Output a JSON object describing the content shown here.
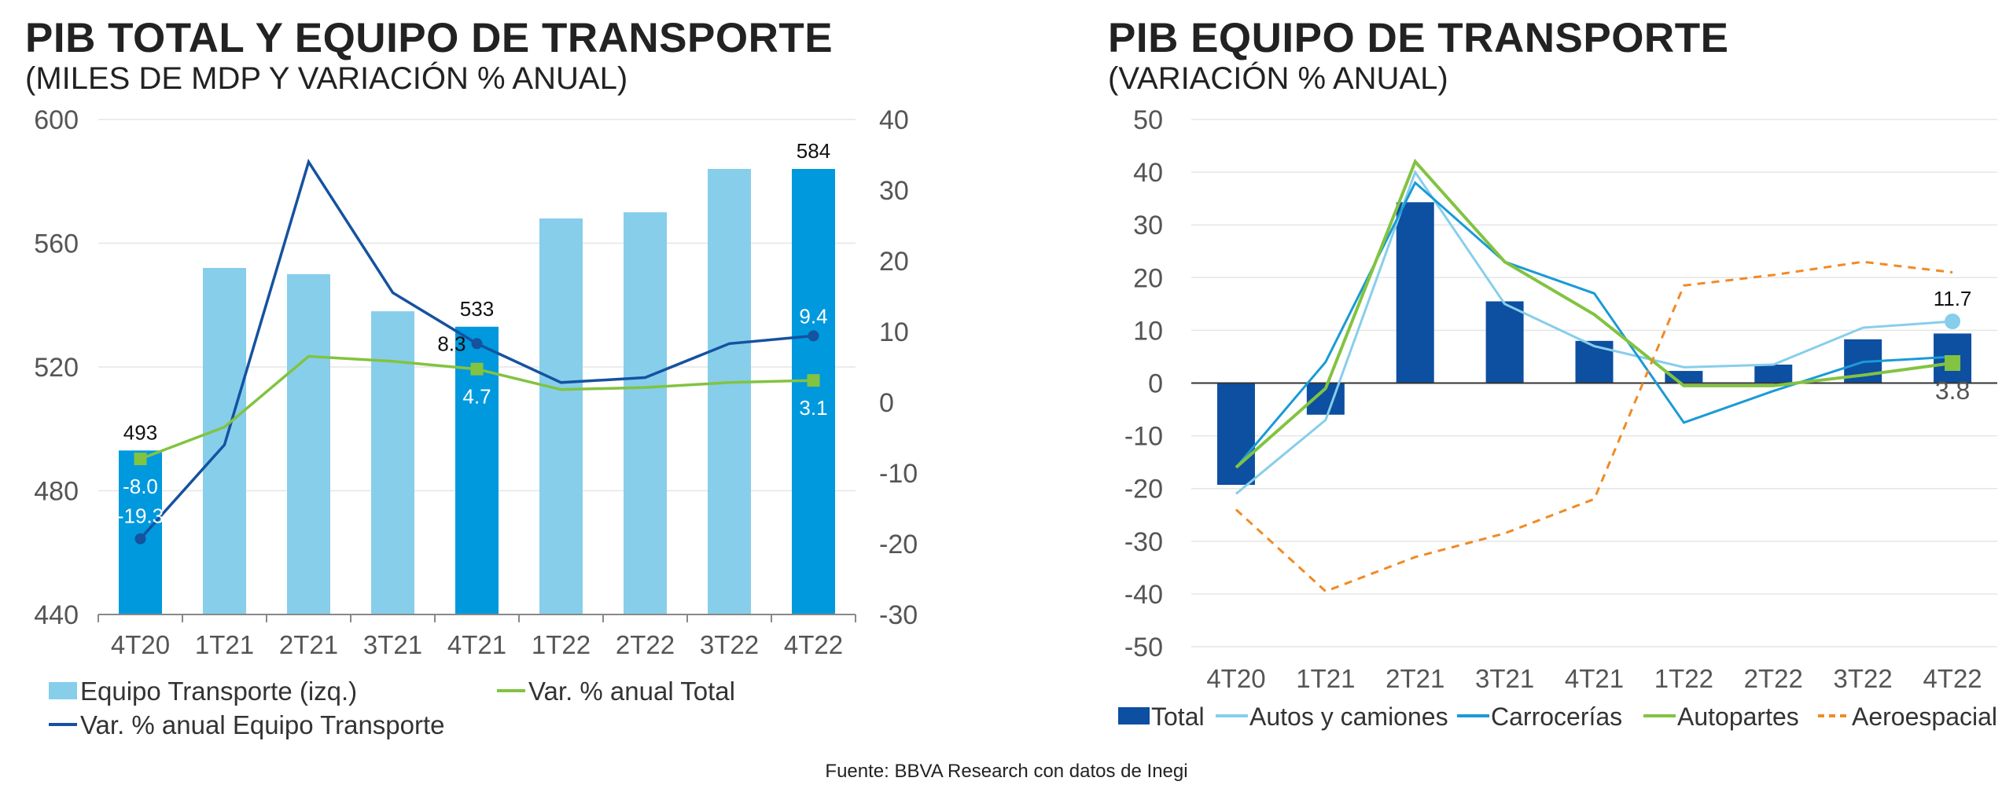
{
  "source": "Fuente: BBVA Research con datos de Inegi",
  "colors": {
    "bar_light": "#87CEEB",
    "bar_highlight": "#0099DD",
    "bar_dark": "#0D4FA0",
    "line_total": "#82C341",
    "line_equipo": "#1552A0",
    "autos": "#87CEEB",
    "carrocerias": "#1A9AD6",
    "autopartes": "#82C341",
    "aeroespacial": "#F08A24",
    "axis": "#888888",
    "grid": "#E6E6E6",
    "text": "#555555"
  },
  "chart_data": [
    {
      "type": "bar",
      "title": "PIB TOTAL Y EQUIPO DE TRANSPORTE",
      "subtitle": "(MILES DE MDP Y VARIACIÓN % ANUAL)",
      "categories": [
        "4T20",
        "1T21",
        "2T21",
        "3T21",
        "4T21",
        "1T22",
        "2T22",
        "3T22",
        "4T22"
      ],
      "ylim": [
        440,
        600
      ],
      "yticks": [
        "600",
        "560",
        "520",
        "480",
        "440"
      ],
      "y2lim": [
        -30,
        40
      ],
      "y2ticks": [
        "40",
        "30",
        "20",
        "10",
        "0",
        "-10",
        "-20",
        "-30"
      ],
      "bars": {
        "name": "Equipo Transporte (izq.)",
        "values": [
          493,
          552,
          550,
          538,
          533,
          568,
          570,
          584,
          584
        ],
        "highlight": [
          true,
          false,
          false,
          false,
          true,
          false,
          false,
          false,
          true
        ],
        "labels": [
          "493",
          "",
          "",
          "",
          "533",
          "",
          "",
          "",
          "584"
        ]
      },
      "series": [
        {
          "name": "Var. % anual Total",
          "axis": "right",
          "values": [
            -8.0,
            -3.5,
            6.5,
            5.8,
            4.7,
            1.8,
            2.1,
            2.8,
            3.1
          ],
          "labels": [
            "-8.0",
            "",
            "",
            "",
            "4.7",
            "",
            "",
            "",
            "3.1"
          ]
        },
        {
          "name": "Var. % anual Equipo Transporte",
          "axis": "right",
          "values": [
            -19.3,
            -6.0,
            34.0,
            15.5,
            8.3,
            2.8,
            3.5,
            8.3,
            9.4
          ],
          "labels": [
            "-19.3",
            "",
            "",
            "",
            "8.3",
            "",
            "",
            "",
            "9.4"
          ]
        }
      ],
      "legend": [
        "Equipo Transporte (izq.)",
        "Var. % anual Total",
        "Var. % anual Equipo Transporte"
      ]
    },
    {
      "type": "bar",
      "title": "PIB EQUIPO DE TRANSPORTE",
      "subtitle": "(VARIACIÓN % ANUAL)",
      "categories": [
        "4T20",
        "1T21",
        "2T21",
        "3T21",
        "4T21",
        "1T22",
        "2T22",
        "3T22",
        "4T22"
      ],
      "ylim": [
        -50,
        50
      ],
      "yticks": [
        "50",
        "40",
        "30",
        "20",
        "10",
        "0",
        "-10",
        "-20",
        "-30",
        "-40",
        "-50"
      ],
      "bars": {
        "name": "Total",
        "values": [
          -19.3,
          -6.0,
          34.3,
          15.5,
          8.0,
          2.3,
          3.5,
          8.3,
          9.4
        ]
      },
      "series": [
        {
          "name": "Autos y camiones",
          "values": [
            -21,
            -7,
            40,
            15,
            7,
            3.0,
            3.5,
            10.5,
            11.7
          ],
          "end_label": "11.7"
        },
        {
          "name": "Carrocerías",
          "values": [
            -16,
            4,
            38,
            23,
            17,
            -7.5,
            -1.5,
            4,
            5
          ]
        },
        {
          "name": "Autopartes",
          "values": [
            -16,
            -1,
            42,
            23,
            13,
            -0.5,
            -0.5,
            1.5,
            3.8
          ],
          "end_label": "3.8"
        },
        {
          "name": "Aeroespacial",
          "values": [
            -24,
            -39.5,
            -33,
            -28.5,
            -22,
            18.5,
            20.5,
            23,
            21
          ]
        }
      ],
      "legend": [
        "Total",
        "Autos y camiones",
        "Carrocerías",
        "Autopartes",
        "Aeroespacial"
      ]
    }
  ]
}
